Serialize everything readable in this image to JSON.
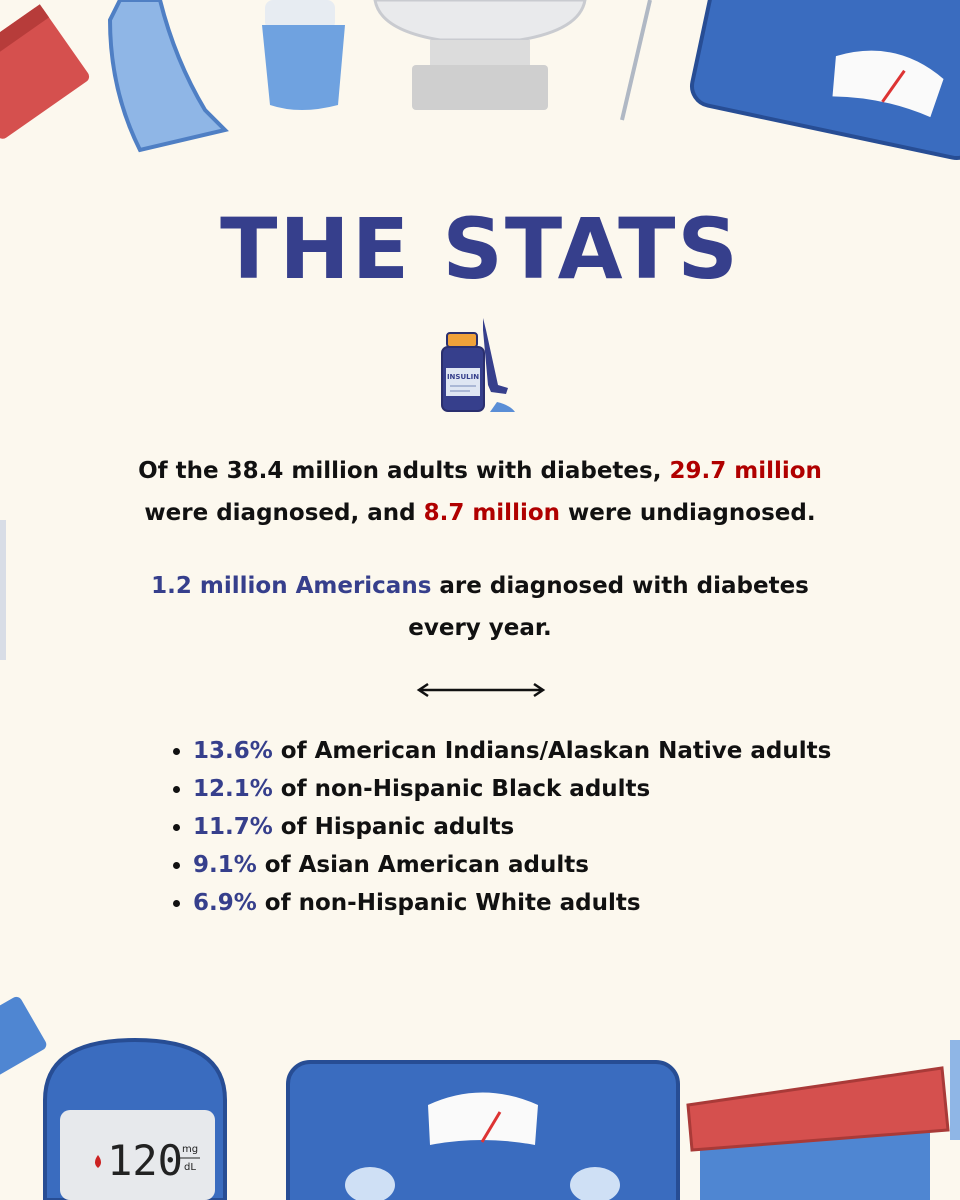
{
  "title": "THE STATS",
  "icon_labels": {
    "insulin": "INSULIN",
    "meter_reading": "120",
    "meter_unit_top": "mg",
    "meter_unit_bottom": "dL"
  },
  "paragraphs": [
    {
      "lines": [
        [
          {
            "text": "Of the 38.4 million adults with diabetes, ",
            "style": "plain"
          },
          {
            "text": "29.7 million",
            "style": "red"
          }
        ],
        [
          {
            "text": "were diagnosed, and ",
            "style": "plain"
          },
          {
            "text": "8.7 million",
            "style": "red"
          },
          {
            "text": " were undiagnosed.",
            "style": "plain"
          }
        ]
      ]
    },
    {
      "lines": [
        [
          {
            "text": "1.2 million Americans",
            "style": "blue"
          },
          {
            "text": " are diagnosed with diabetes",
            "style": "plain"
          }
        ],
        [
          {
            "text": "every year.",
            "style": "plain"
          }
        ]
      ]
    }
  ],
  "list": [
    {
      "highlight": "13.6%",
      "text": " of American Indians/Alaskan Native adults"
    },
    {
      "highlight": "12.1%",
      "text": " of non-Hispanic Black adults"
    },
    {
      "highlight": "11.7%",
      "text": " of Hispanic adults"
    },
    {
      "highlight": "9.1%",
      "text": " of Asian American adults"
    },
    {
      "highlight": "6.9%",
      "text": " of non-Hispanic White adults"
    }
  ]
}
